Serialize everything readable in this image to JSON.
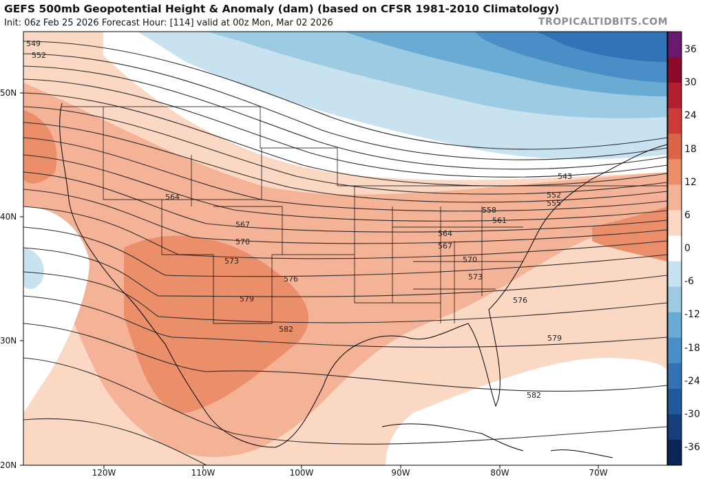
{
  "header": {
    "title": "GEFS 500mb Geopotential Height & Anomaly (dam) (based on CFSR 1981-2010 Climatology)",
    "subtitle": "Init: 06z Feb 25 2026   Forecast Hour: [114]   valid at 00z Mon, Mar 02 2026",
    "credit": "TROPICALTIDBITS.COM"
  },
  "axes": {
    "lat_labels": [
      {
        "text": "50N",
        "lat": 50
      },
      {
        "text": "40N",
        "lat": 40
      },
      {
        "text": "30N",
        "lat": 30
      },
      {
        "text": "20N",
        "lat": 20
      }
    ],
    "lon_labels": [
      {
        "text": "120W",
        "lon": -120
      },
      {
        "text": "110W",
        "lon": -110
      },
      {
        "text": "100W",
        "lon": -100
      },
      {
        "text": "90W",
        "lon": -90
      },
      {
        "text": "80W",
        "lon": -80
      },
      {
        "text": "70W",
        "lon": -70
      }
    ]
  },
  "colorbar": {
    "labels": [
      "36",
      "30",
      "24",
      "18",
      "12",
      "6",
      "0",
      "-6",
      "-12",
      "-18",
      "-24",
      "-30",
      "-36"
    ],
    "colors": [
      "#6a1a6e",
      "#8b0a2a",
      "#b0202e",
      "#cc3b36",
      "#dc6448",
      "#eb8e6a",
      "#f4b396",
      "#fad8c4",
      "#ffffff",
      "#c9e2f0",
      "#9ccbe3",
      "#6aabd3",
      "#4a8ec8",
      "#3272b6",
      "#1f5a9e",
      "#163f7d",
      "#0c2558"
    ]
  },
  "contour_labels": [
    {
      "text": "549"
    },
    {
      "text": "552"
    },
    {
      "text": "564"
    },
    {
      "text": "567"
    },
    {
      "text": "570"
    },
    {
      "text": "573"
    },
    {
      "text": "576"
    },
    {
      "text": "579"
    },
    {
      "text": "582"
    },
    {
      "text": "543"
    },
    {
      "text": "552"
    },
    {
      "text": "555"
    },
    {
      "text": "558"
    },
    {
      "text": "561"
    },
    {
      "text": "564"
    },
    {
      "text": "567"
    },
    {
      "text": "570"
    },
    {
      "text": "573"
    },
    {
      "text": "576"
    },
    {
      "text": "579"
    },
    {
      "text": "582"
    }
  ]
}
